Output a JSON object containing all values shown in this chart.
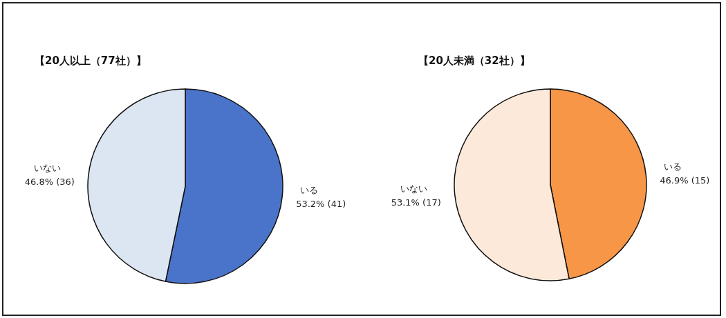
{
  "chart_data": [
    {
      "type": "pie",
      "title": "【20人以上（77社）】",
      "categories": [
        "いる",
        "いない"
      ],
      "values": [
        41,
        36
      ],
      "colors": [
        "#4a74c9",
        "#dce6f2"
      ],
      "value_labels": [
        "53.2% (41)",
        "46.8% (36)"
      ]
    },
    {
      "type": "pie",
      "title": "【20人未満（32社）】",
      "categories": [
        "いる",
        "いない"
      ],
      "values": [
        15,
        17
      ],
      "colors": [
        "#f79646",
        "#fde9d9"
      ],
      "value_labels": [
        "46.9% (15)",
        "53.1% (17)"
      ]
    }
  ]
}
